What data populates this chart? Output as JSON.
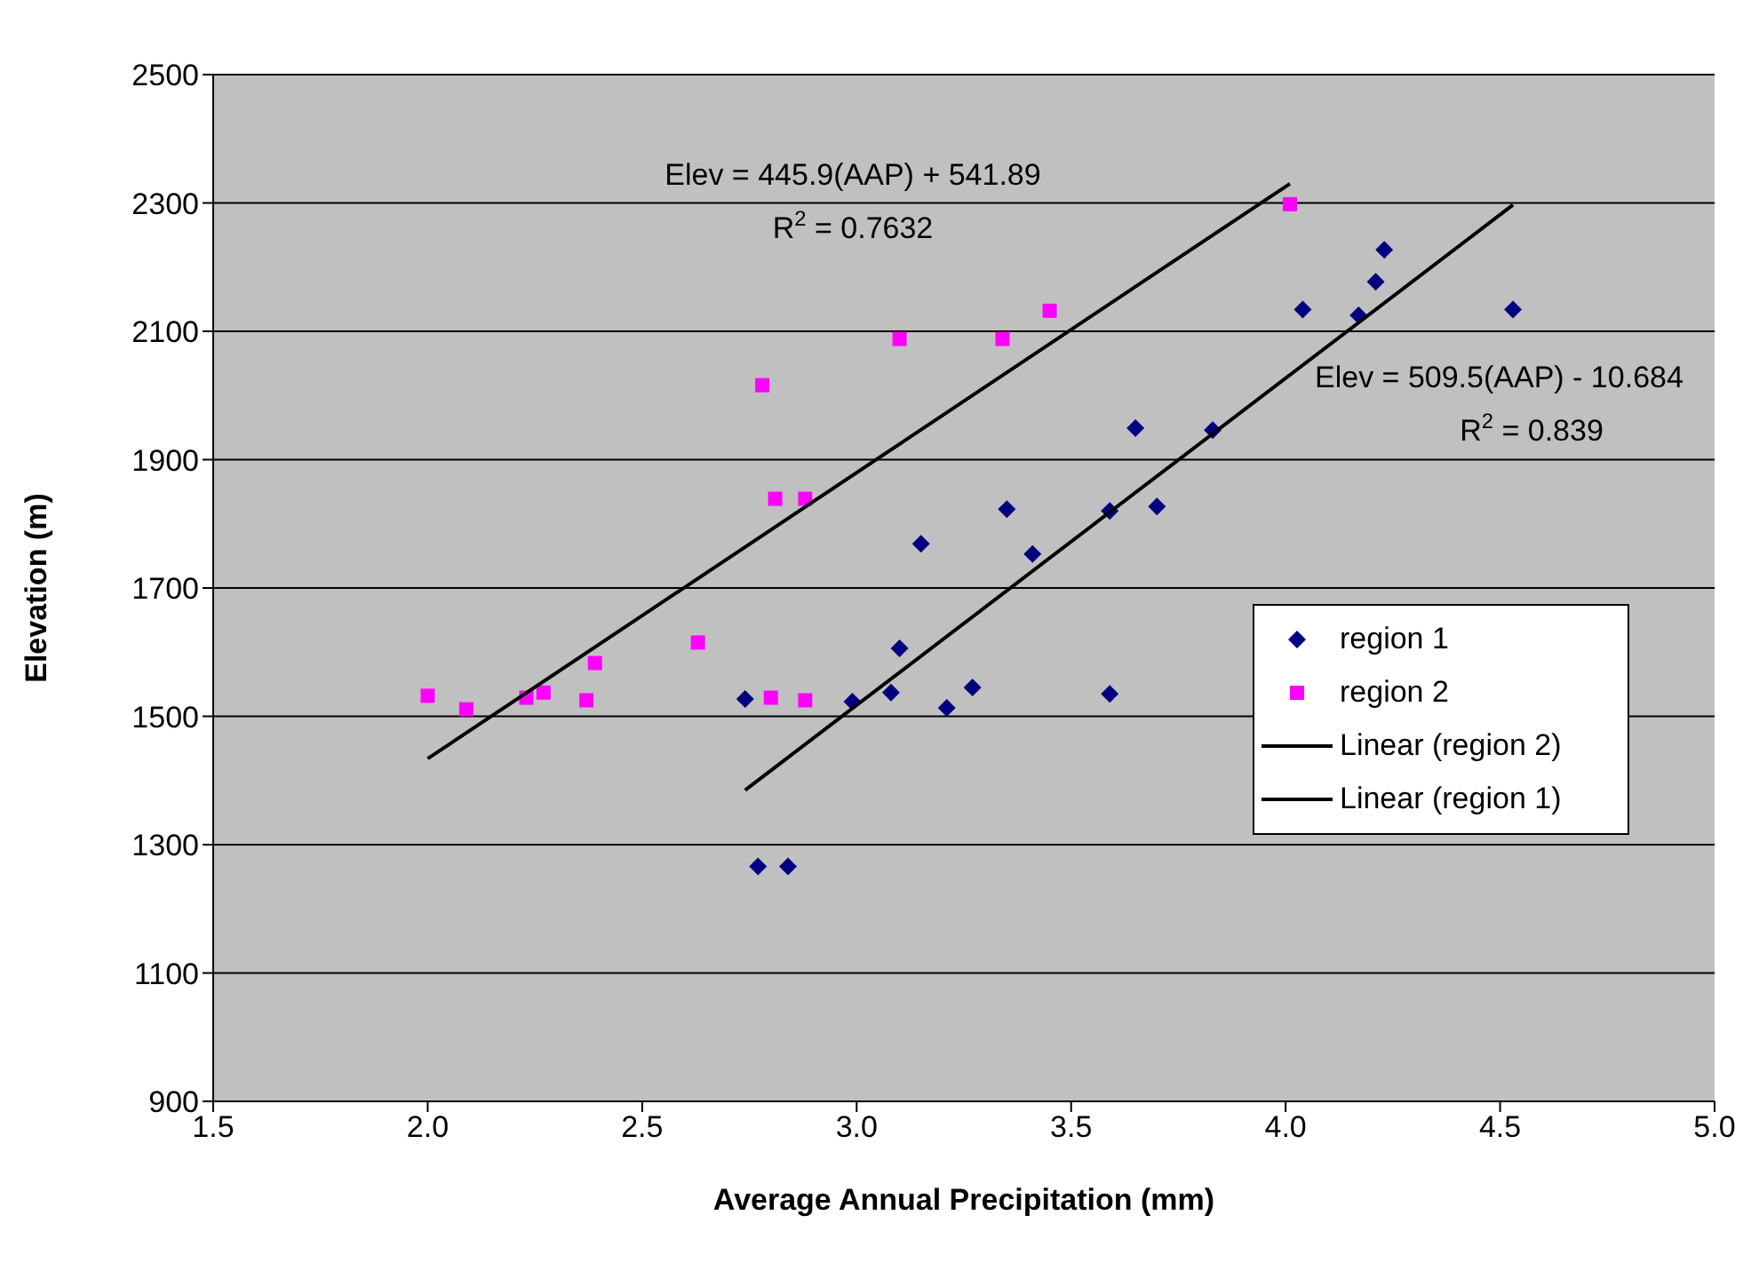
{
  "chart_data": {
    "type": "scatter",
    "xlabel": "Average Annual Precipitation (mm)",
    "ylabel": "Elevation (m)",
    "xlim": [
      1.5,
      5.0
    ],
    "xticks": [
      {
        "value": 1.5,
        "label": "1.5"
      },
      {
        "value": 2.0,
        "label": "2.0"
      },
      {
        "value": 2.5,
        "label": "2.5"
      },
      {
        "value": 3.0,
        "label": "3.0"
      },
      {
        "value": 3.5,
        "label": "3.5"
      },
      {
        "value": 4.0,
        "label": "4.0"
      },
      {
        "value": 4.5,
        "label": "4.5"
      },
      {
        "value": 5.0,
        "label": "5.0"
      }
    ],
    "ylim": [
      900,
      2500
    ],
    "yticks": [
      900,
      1100,
      1300,
      1500,
      1700,
      1900,
      2100,
      2300,
      2500
    ],
    "grid": "y",
    "legend": "right",
    "series": [
      {
        "name": "region 1",
        "marker": "diamond",
        "color": "#000080",
        "x": [
          2.74,
          2.77,
          2.84,
          2.99,
          3.08,
          3.1,
          3.15,
          3.21,
          3.27,
          3.35,
          3.41,
          3.59,
          3.59,
          3.65,
          3.7,
          3.83,
          4.04,
          4.17,
          4.21,
          4.23,
          4.53
        ],
        "values": [
          1527,
          1266,
          1266,
          1523,
          1537,
          1606,
          1769,
          1513,
          1545,
          1823,
          1753,
          1535,
          1820,
          1949,
          1827,
          1946,
          2134,
          2125,
          2177,
          2227,
          2134
        ]
      },
      {
        "name": "region 2",
        "marker": "square",
        "color": "#ff00ff",
        "x": [
          2.0,
          2.09,
          2.23,
          2.27,
          2.37,
          2.39,
          2.63,
          2.78,
          2.81,
          2.88,
          2.8,
          2.88,
          3.1,
          3.34,
          3.45,
          4.01
        ],
        "values": [
          1532,
          1511,
          1529,
          1537,
          1525,
          1583,
          1615,
          2016,
          1839,
          1839,
          1529,
          1525,
          2088,
          2088,
          2132,
          2298
        ]
      },
      {
        "name": "Linear (region 2)",
        "type": "line",
        "marker": "none",
        "color": "#000000",
        "x": [
          2.0,
          4.01
        ],
        "values": [
          1434,
          2330
        ]
      },
      {
        "name": "Linear (region 1)",
        "type": "line",
        "marker": "none",
        "color": "#000000",
        "x": [
          2.74,
          4.53
        ],
        "values": [
          1385,
          2297
        ]
      }
    ],
    "annotations": [
      "Elev = 445.9(AAP) + 541.89\nR$^{2}$ = 0.7632",
      "Elev = 509.5(AAP) - 10.684\nR$^{2}$ = 0.839"
    ]
  }
}
